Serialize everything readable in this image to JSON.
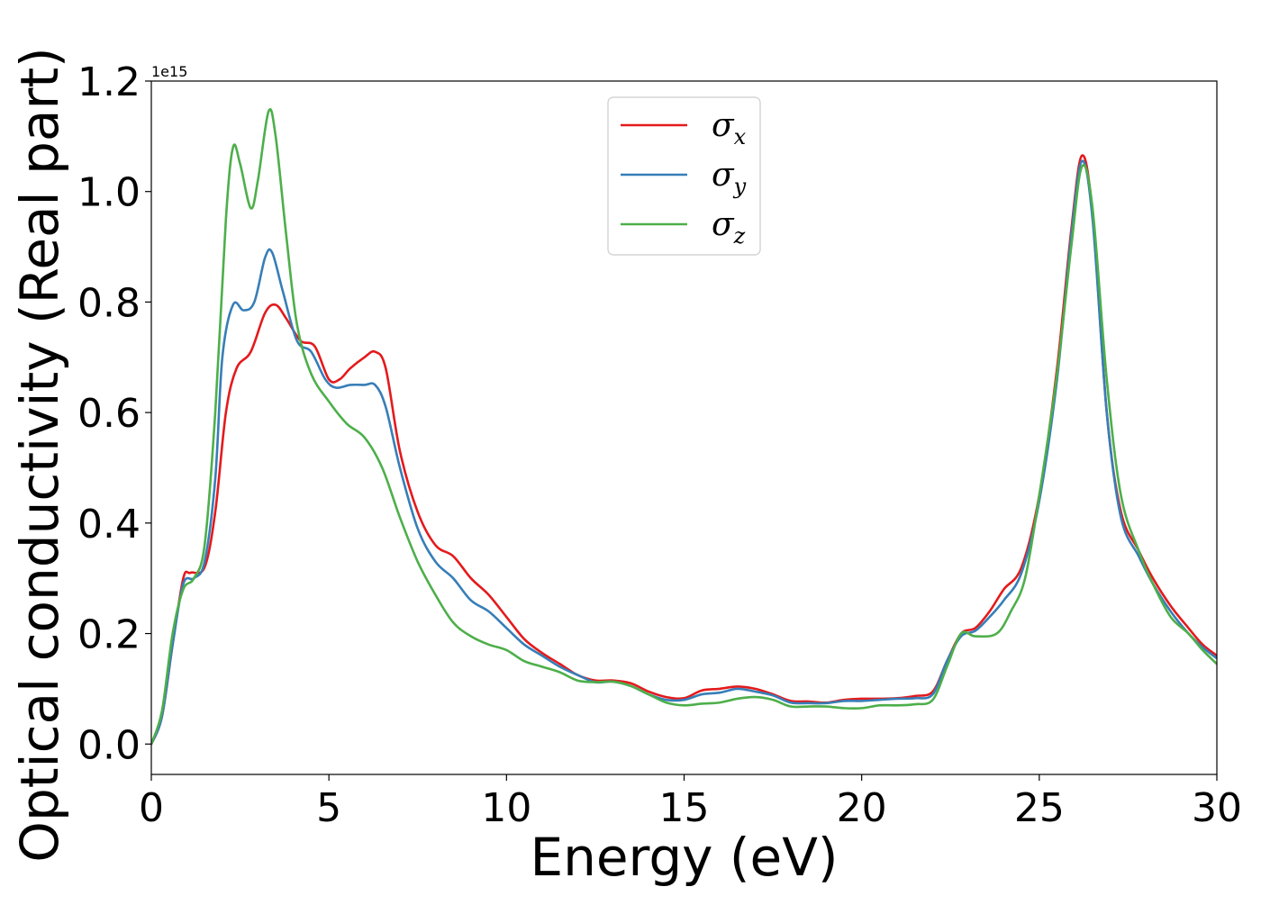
{
  "chart_data": {
    "type": "line",
    "xlabel": "Energy (eV)",
    "ylabel": "Optical conductivity (Real part)",
    "y_offset_label": "1e15",
    "xlim": [
      0,
      30
    ],
    "ylim": [
      -0.055,
      1.2
    ],
    "x_ticks": [
      0,
      5,
      10,
      15,
      20,
      25,
      30
    ],
    "x_tick_labels": [
      "0",
      "5",
      "10",
      "15",
      "20",
      "25",
      "30"
    ],
    "y_ticks": [
      0.0,
      0.2,
      0.4,
      0.6,
      0.8,
      1.0,
      1.2
    ],
    "y_tick_labels": [
      "0.0",
      "0.2",
      "0.4",
      "0.6",
      "0.8",
      "1.0",
      "1.2"
    ],
    "grid": false,
    "legend_position": "top-center",
    "series": [
      {
        "name": "σx",
        "symbol": "σ",
        "subscript": "x",
        "color": "#e41a1c",
        "points": [
          [
            0,
            0
          ],
          [
            0.3,
            0.05
          ],
          [
            0.6,
            0.18
          ],
          [
            0.9,
            0.3
          ],
          [
            1.1,
            0.31
          ],
          [
            1.5,
            0.32
          ],
          [
            1.8,
            0.42
          ],
          [
            2.1,
            0.6
          ],
          [
            2.4,
            0.68
          ],
          [
            2.8,
            0.71
          ],
          [
            3.2,
            0.78
          ],
          [
            3.5,
            0.795
          ],
          [
            3.8,
            0.77
          ],
          [
            4.2,
            0.73
          ],
          [
            4.6,
            0.72
          ],
          [
            5.0,
            0.66
          ],
          [
            5.3,
            0.66
          ],
          [
            5.6,
            0.68
          ],
          [
            6.0,
            0.7
          ],
          [
            6.3,
            0.71
          ],
          [
            6.6,
            0.68
          ],
          [
            7.0,
            0.53
          ],
          [
            7.5,
            0.42
          ],
          [
            8.0,
            0.36
          ],
          [
            8.5,
            0.34
          ],
          [
            9.0,
            0.3
          ],
          [
            9.5,
            0.27
          ],
          [
            10,
            0.23
          ],
          [
            10.5,
            0.19
          ],
          [
            11,
            0.165
          ],
          [
            11.5,
            0.145
          ],
          [
            12,
            0.125
          ],
          [
            12.5,
            0.115
          ],
          [
            13,
            0.115
          ],
          [
            13.5,
            0.11
          ],
          [
            14,
            0.095
          ],
          [
            14.5,
            0.085
          ],
          [
            15,
            0.083
          ],
          [
            15.5,
            0.097
          ],
          [
            16,
            0.1
          ],
          [
            16.5,
            0.104
          ],
          [
            17,
            0.1
          ],
          [
            17.5,
            0.09
          ],
          [
            18,
            0.078
          ],
          [
            18.5,
            0.077
          ],
          [
            19,
            0.075
          ],
          [
            19.5,
            0.08
          ],
          [
            20,
            0.082
          ],
          [
            20.5,
            0.082
          ],
          [
            21,
            0.083
          ],
          [
            21.5,
            0.087
          ],
          [
            22,
            0.095
          ],
          [
            22.4,
            0.15
          ],
          [
            22.8,
            0.2
          ],
          [
            23.2,
            0.21
          ],
          [
            23.6,
            0.24
          ],
          [
            24,
            0.28
          ],
          [
            24.5,
            0.32
          ],
          [
            25,
            0.45
          ],
          [
            25.5,
            0.68
          ],
          [
            25.9,
            0.93
          ],
          [
            26.2,
            1.065
          ],
          [
            26.5,
            0.96
          ],
          [
            26.9,
            0.6
          ],
          [
            27.3,
            0.42
          ],
          [
            27.8,
            0.35
          ],
          [
            28.2,
            0.3
          ],
          [
            28.7,
            0.25
          ],
          [
            29.2,
            0.21
          ],
          [
            29.6,
            0.18
          ],
          [
            30,
            0.16
          ]
        ]
      },
      {
        "name": "σy",
        "symbol": "σ",
        "subscript": "y",
        "color": "#377eb8",
        "points": [
          [
            0,
            0
          ],
          [
            0.3,
            0.05
          ],
          [
            0.6,
            0.18
          ],
          [
            0.9,
            0.29
          ],
          [
            1.2,
            0.3
          ],
          [
            1.5,
            0.33
          ],
          [
            1.8,
            0.48
          ],
          [
            2.0,
            0.7
          ],
          [
            2.3,
            0.795
          ],
          [
            2.6,
            0.785
          ],
          [
            2.9,
            0.8
          ],
          [
            3.2,
            0.88
          ],
          [
            3.4,
            0.89
          ],
          [
            3.7,
            0.82
          ],
          [
            4.1,
            0.73
          ],
          [
            4.5,
            0.71
          ],
          [
            4.9,
            0.66
          ],
          [
            5.2,
            0.645
          ],
          [
            5.6,
            0.65
          ],
          [
            6.0,
            0.65
          ],
          [
            6.3,
            0.65
          ],
          [
            6.6,
            0.61
          ],
          [
            7.0,
            0.5
          ],
          [
            7.5,
            0.39
          ],
          [
            8.0,
            0.33
          ],
          [
            8.5,
            0.3
          ],
          [
            9.0,
            0.26
          ],
          [
            9.5,
            0.24
          ],
          [
            10,
            0.21
          ],
          [
            10.5,
            0.18
          ],
          [
            11,
            0.16
          ],
          [
            11.5,
            0.14
          ],
          [
            12,
            0.125
          ],
          [
            12.5,
            0.112
          ],
          [
            13,
            0.113
          ],
          [
            13.5,
            0.105
          ],
          [
            14,
            0.09
          ],
          [
            14.5,
            0.08
          ],
          [
            15,
            0.08
          ],
          [
            15.5,
            0.09
          ],
          [
            16,
            0.093
          ],
          [
            16.5,
            0.1
          ],
          [
            17,
            0.095
          ],
          [
            17.5,
            0.088
          ],
          [
            18,
            0.075
          ],
          [
            18.5,
            0.074
          ],
          [
            19,
            0.074
          ],
          [
            19.5,
            0.078
          ],
          [
            20,
            0.078
          ],
          [
            20.5,
            0.08
          ],
          [
            21,
            0.082
          ],
          [
            21.5,
            0.083
          ],
          [
            22,
            0.09
          ],
          [
            22.4,
            0.15
          ],
          [
            22.8,
            0.195
          ],
          [
            23.2,
            0.205
          ],
          [
            23.6,
            0.23
          ],
          [
            24,
            0.26
          ],
          [
            24.5,
            0.31
          ],
          [
            25,
            0.44
          ],
          [
            25.5,
            0.66
          ],
          [
            25.9,
            0.92
          ],
          [
            26.2,
            1.055
          ],
          [
            26.5,
            0.95
          ],
          [
            26.9,
            0.6
          ],
          [
            27.3,
            0.41
          ],
          [
            27.8,
            0.34
          ],
          [
            28.2,
            0.29
          ],
          [
            28.7,
            0.24
          ],
          [
            29.2,
            0.2
          ],
          [
            29.6,
            0.175
          ],
          [
            30,
            0.155
          ]
        ]
      },
      {
        "name": "σz",
        "symbol": "σ",
        "subscript": "z",
        "color": "#4daf4a",
        "points": [
          [
            0,
            0
          ],
          [
            0.3,
            0.06
          ],
          [
            0.6,
            0.2
          ],
          [
            0.9,
            0.28
          ],
          [
            1.2,
            0.3
          ],
          [
            1.5,
            0.36
          ],
          [
            1.8,
            0.6
          ],
          [
            2.1,
            0.95
          ],
          [
            2.3,
            1.08
          ],
          [
            2.5,
            1.05
          ],
          [
            2.8,
            0.97
          ],
          [
            3.0,
            1.02
          ],
          [
            3.3,
            1.145
          ],
          [
            3.5,
            1.1
          ],
          [
            3.8,
            0.92
          ],
          [
            4.1,
            0.76
          ],
          [
            4.5,
            0.67
          ],
          [
            5.0,
            0.62
          ],
          [
            5.5,
            0.58
          ],
          [
            6.0,
            0.555
          ],
          [
            6.5,
            0.5
          ],
          [
            7.0,
            0.41
          ],
          [
            7.5,
            0.33
          ],
          [
            8.0,
            0.27
          ],
          [
            8.5,
            0.22
          ],
          [
            9.0,
            0.195
          ],
          [
            9.5,
            0.18
          ],
          [
            10,
            0.17
          ],
          [
            10.5,
            0.15
          ],
          [
            11,
            0.14
          ],
          [
            11.5,
            0.13
          ],
          [
            12,
            0.115
          ],
          [
            12.5,
            0.112
          ],
          [
            13,
            0.113
          ],
          [
            13.5,
            0.105
          ],
          [
            14,
            0.09
          ],
          [
            14.5,
            0.075
          ],
          [
            15,
            0.07
          ],
          [
            15.5,
            0.073
          ],
          [
            16,
            0.075
          ],
          [
            16.5,
            0.082
          ],
          [
            17,
            0.085
          ],
          [
            17.5,
            0.08
          ],
          [
            18,
            0.068
          ],
          [
            18.5,
            0.068
          ],
          [
            19,
            0.068
          ],
          [
            19.5,
            0.065
          ],
          [
            20,
            0.065
          ],
          [
            20.5,
            0.07
          ],
          [
            21,
            0.07
          ],
          [
            21.5,
            0.072
          ],
          [
            22,
            0.08
          ],
          [
            22.4,
            0.14
          ],
          [
            22.8,
            0.2
          ],
          [
            23.2,
            0.195
          ],
          [
            23.8,
            0.2
          ],
          [
            24.2,
            0.24
          ],
          [
            24.6,
            0.3
          ],
          [
            25,
            0.45
          ],
          [
            25.5,
            0.67
          ],
          [
            25.9,
            0.9
          ],
          [
            26.2,
            1.045
          ],
          [
            26.5,
            0.97
          ],
          [
            26.9,
            0.66
          ],
          [
            27.3,
            0.45
          ],
          [
            27.8,
            0.35
          ],
          [
            28.2,
            0.29
          ],
          [
            28.7,
            0.23
          ],
          [
            29.2,
            0.2
          ],
          [
            29.6,
            0.17
          ],
          [
            30,
            0.145
          ]
        ]
      }
    ]
  }
}
